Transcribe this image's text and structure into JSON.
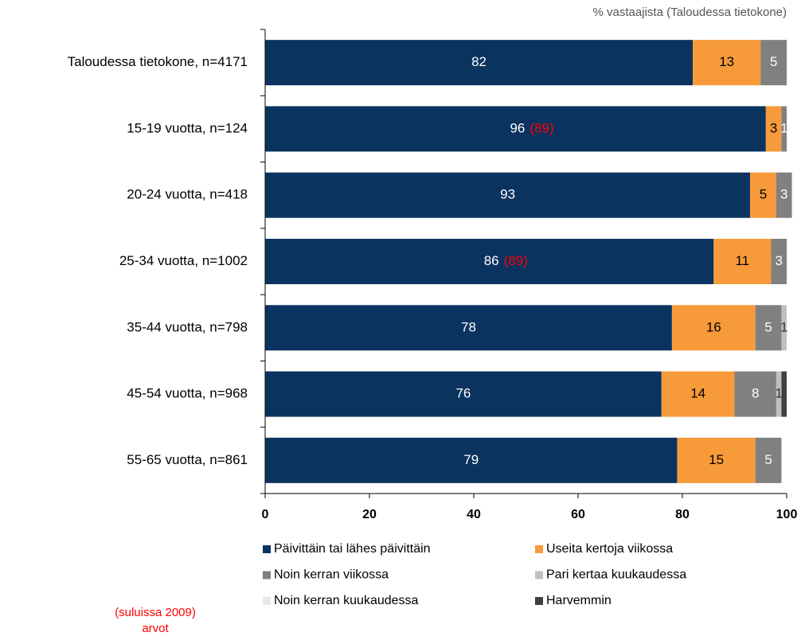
{
  "chart_data": {
    "type": "stacked_barh",
    "axis_note": "% vastaajista (Taloudessa tietokone)",
    "categories": [
      "Taloudessa tietokone, n=4171",
      "15-19 vuotta, n=124",
      "20-24 vuotta, n=418",
      "25-34 vuotta, n=1002",
      "35-44 vuotta, n=798",
      "45-54 vuotta, n=968",
      "55-65 vuotta, n=861"
    ],
    "series": [
      {
        "name": "Päivittäin tai lähes päivittäin",
        "color": "#0b3360",
        "label_color": "#ffffff",
        "values": [
          82,
          96,
          93,
          86,
          78,
          76,
          79
        ]
      },
      {
        "name": "Useita kertoja viikossa",
        "color": "#f79a3a",
        "label_color": "#000000",
        "values": [
          13,
          3,
          5,
          11,
          16,
          14,
          15
        ]
      },
      {
        "name": "Noin kerran viikossa",
        "color": "#808080",
        "label_color": "#ffffff",
        "values": [
          5,
          1,
          3,
          3,
          5,
          8,
          5
        ]
      },
      {
        "name": "Pari kertaa kuukaudessa",
        "color": "#c0c0c0",
        "label_color": "#333333",
        "values": [
          null,
          null,
          null,
          null,
          1,
          1,
          null
        ]
      },
      {
        "name": "Noin kerran kuukaudessa",
        "color": "#e8e8e8",
        "label_color": "#333333",
        "values": [
          null,
          null,
          null,
          null,
          null,
          null,
          null
        ]
      },
      {
        "name": "Harvemmin",
        "color": "#404040",
        "label_color": "#ffffff",
        "values": [
          null,
          null,
          null,
          null,
          null,
          1,
          null
        ],
        "value_labels": [
          null,
          null,
          null,
          null,
          null,
          null,
          null
        ]
      }
    ],
    "annotations_2009": [
      null,
      "(89)",
      null,
      "(89)",
      null,
      null,
      null
    ],
    "annotation_color": "#ff0000",
    "footnote": [
      "(suluissa 2009)",
      "arvot"
    ],
    "xlim": [
      0,
      100
    ],
    "xticks": [
      0,
      20,
      40,
      60,
      80,
      100
    ]
  }
}
